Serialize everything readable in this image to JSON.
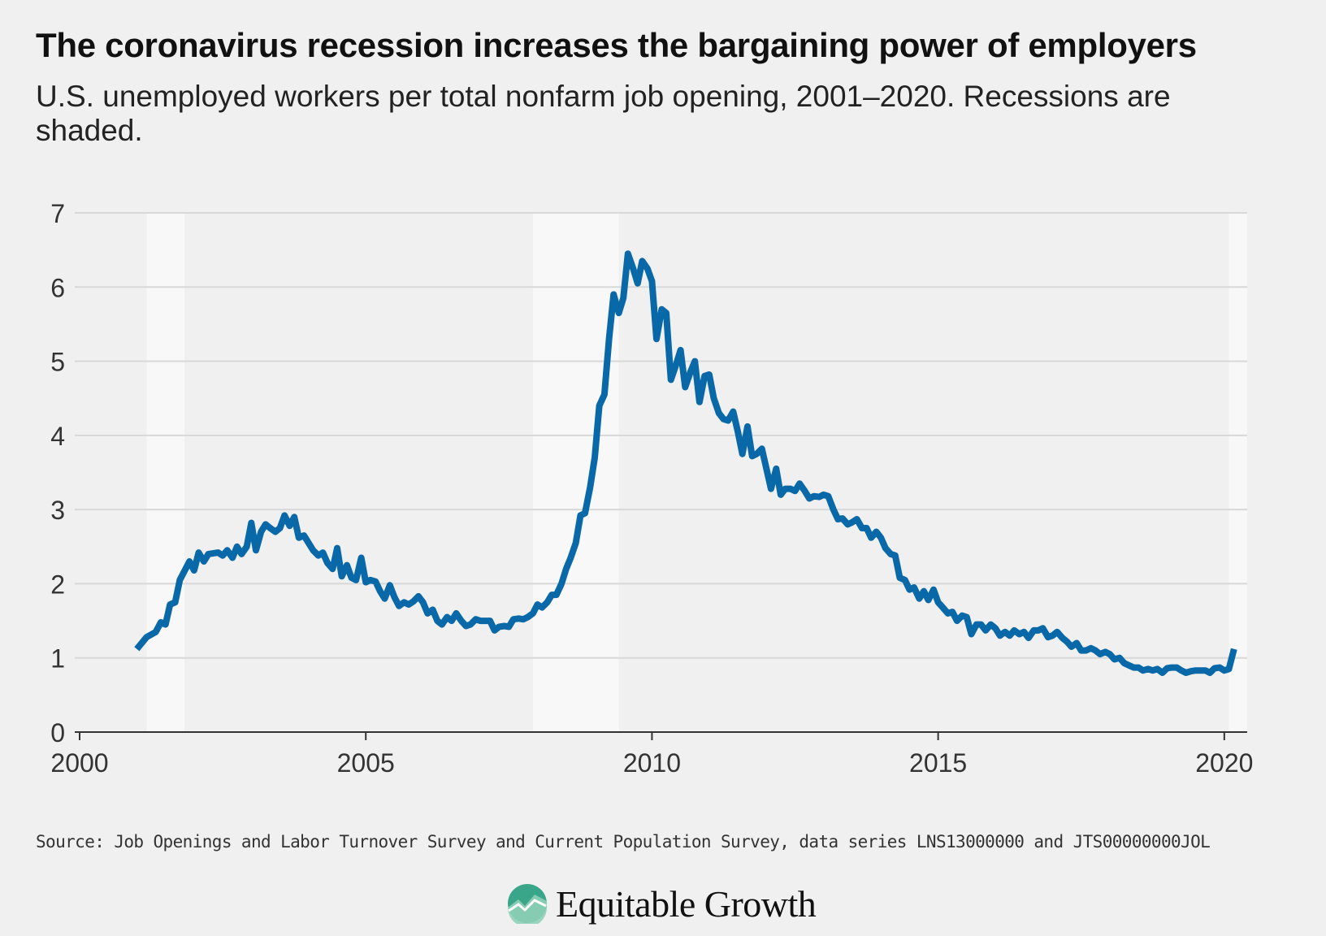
{
  "title": "The coronavirus recession increases the bargaining power of employers",
  "subtitle": "U.S. unemployed workers per total nonfarm job opening, 2001–2020. Recessions are shaded.",
  "source": "Source: Job Openings and Labor Turnover Survey and Current Population Survey, data series LNS13000000 and JTS00000000JOL",
  "logo": {
    "text": "Equitable Growth",
    "icon": "equitable-growth-logo-icon"
  },
  "colors": {
    "line": "#0868a8",
    "grid": "#d8d8d8",
    "recession": "#f8f8f8",
    "background": "#f0f0f0"
  },
  "chart_data": {
    "type": "line",
    "title": "",
    "xlabel": "",
    "ylabel": "",
    "xlim": [
      2000,
      2020.4
    ],
    "ylim": [
      0,
      7
    ],
    "x_ticks": [
      {
        "value": 2000,
        "label": "2000"
      },
      {
        "value": 2005,
        "label": "2005"
      },
      {
        "value": 2010,
        "label": "2010"
      },
      {
        "value": 2015,
        "label": "2015"
      },
      {
        "value": 2020,
        "label": "2020"
      }
    ],
    "y_ticks": [
      {
        "value": 0,
        "label": "0"
      },
      {
        "value": 1,
        "label": "1"
      },
      {
        "value": 2,
        "label": "2"
      },
      {
        "value": 3,
        "label": "3"
      },
      {
        "value": 4,
        "label": "4"
      },
      {
        "value": 5,
        "label": "5"
      },
      {
        "value": 6,
        "label": "6"
      },
      {
        "value": 7,
        "label": "7"
      }
    ],
    "grid": true,
    "recessions": [
      {
        "start": 2001.17,
        "end": 2001.83
      },
      {
        "start": 2007.92,
        "end": 2009.42
      },
      {
        "start": 2020.08,
        "end": 2020.4
      }
    ],
    "series": [
      {
        "color": "#0868a8",
        "points": [
          [
            2001.0,
            1.12
          ],
          [
            2001.17,
            1.28
          ],
          [
            2001.33,
            1.35
          ],
          [
            2001.42,
            1.48
          ],
          [
            2001.5,
            1.45
          ],
          [
            2001.58,
            1.72
          ],
          [
            2001.67,
            1.75
          ],
          [
            2001.75,
            2.05
          ],
          [
            2001.92,
            2.3
          ],
          [
            2002.0,
            2.18
          ],
          [
            2002.08,
            2.42
          ],
          [
            2002.17,
            2.3
          ],
          [
            2002.25,
            2.4
          ],
          [
            2002.42,
            2.42
          ],
          [
            2002.5,
            2.38
          ],
          [
            2002.58,
            2.45
          ],
          [
            2002.67,
            2.35
          ],
          [
            2002.75,
            2.5
          ],
          [
            2002.83,
            2.4
          ],
          [
            2002.92,
            2.5
          ],
          [
            2003.0,
            2.82
          ],
          [
            2003.08,
            2.45
          ],
          [
            2003.17,
            2.7
          ],
          [
            2003.25,
            2.8
          ],
          [
            2003.33,
            2.75
          ],
          [
            2003.42,
            2.7
          ],
          [
            2003.5,
            2.75
          ],
          [
            2003.58,
            2.92
          ],
          [
            2003.67,
            2.78
          ],
          [
            2003.75,
            2.9
          ],
          [
            2003.83,
            2.62
          ],
          [
            2003.92,
            2.65
          ],
          [
            2004.0,
            2.55
          ],
          [
            2004.08,
            2.45
          ],
          [
            2004.17,
            2.38
          ],
          [
            2004.25,
            2.42
          ],
          [
            2004.33,
            2.28
          ],
          [
            2004.42,
            2.2
          ],
          [
            2004.5,
            2.48
          ],
          [
            2004.58,
            2.1
          ],
          [
            2004.67,
            2.25
          ],
          [
            2004.75,
            2.08
          ],
          [
            2004.83,
            2.05
          ],
          [
            2004.92,
            2.35
          ],
          [
            2005.0,
            2.02
          ],
          [
            2005.08,
            2.05
          ],
          [
            2005.17,
            2.03
          ],
          [
            2005.25,
            1.9
          ],
          [
            2005.33,
            1.8
          ],
          [
            2005.42,
            1.98
          ],
          [
            2005.5,
            1.82
          ],
          [
            2005.58,
            1.7
          ],
          [
            2005.67,
            1.75
          ],
          [
            2005.75,
            1.72
          ],
          [
            2005.83,
            1.76
          ],
          [
            2005.92,
            1.83
          ],
          [
            2006.0,
            1.75
          ],
          [
            2006.08,
            1.6
          ],
          [
            2006.17,
            1.65
          ],
          [
            2006.25,
            1.5
          ],
          [
            2006.33,
            1.45
          ],
          [
            2006.42,
            1.55
          ],
          [
            2006.5,
            1.5
          ],
          [
            2006.58,
            1.6
          ],
          [
            2006.67,
            1.5
          ],
          [
            2006.75,
            1.43
          ],
          [
            2006.83,
            1.45
          ],
          [
            2006.92,
            1.52
          ],
          [
            2007.0,
            1.5
          ],
          [
            2007.08,
            1.5
          ],
          [
            2007.17,
            1.5
          ],
          [
            2007.25,
            1.37
          ],
          [
            2007.33,
            1.42
          ],
          [
            2007.42,
            1.43
          ],
          [
            2007.5,
            1.42
          ],
          [
            2007.58,
            1.52
          ],
          [
            2007.67,
            1.53
          ],
          [
            2007.75,
            1.52
          ],
          [
            2007.83,
            1.55
          ],
          [
            2007.92,
            1.6
          ],
          [
            2008.0,
            1.72
          ],
          [
            2008.08,
            1.68
          ],
          [
            2008.17,
            1.75
          ],
          [
            2008.25,
            1.85
          ],
          [
            2008.33,
            1.85
          ],
          [
            2008.42,
            2.0
          ],
          [
            2008.5,
            2.2
          ],
          [
            2008.58,
            2.35
          ],
          [
            2008.67,
            2.55
          ],
          [
            2008.75,
            2.92
          ],
          [
            2008.83,
            2.95
          ],
          [
            2008.92,
            3.3
          ],
          [
            2009.0,
            3.7
          ],
          [
            2009.08,
            4.4
          ],
          [
            2009.17,
            4.55
          ],
          [
            2009.25,
            5.3
          ],
          [
            2009.33,
            5.9
          ],
          [
            2009.42,
            5.65
          ],
          [
            2009.5,
            5.85
          ],
          [
            2009.58,
            6.45
          ],
          [
            2009.67,
            6.25
          ],
          [
            2009.75,
            6.05
          ],
          [
            2009.83,
            6.35
          ],
          [
            2009.92,
            6.25
          ],
          [
            2010.0,
            6.08
          ],
          [
            2010.08,
            5.3
          ],
          [
            2010.17,
            5.7
          ],
          [
            2010.25,
            5.65
          ],
          [
            2010.33,
            4.75
          ],
          [
            2010.42,
            4.95
          ],
          [
            2010.5,
            5.15
          ],
          [
            2010.58,
            4.65
          ],
          [
            2010.67,
            4.85
          ],
          [
            2010.75,
            5.0
          ],
          [
            2010.83,
            4.45
          ],
          [
            2010.92,
            4.8
          ],
          [
            2011.0,
            4.82
          ],
          [
            2011.08,
            4.5
          ],
          [
            2011.17,
            4.3
          ],
          [
            2011.25,
            4.22
          ],
          [
            2011.33,
            4.2
          ],
          [
            2011.42,
            4.32
          ],
          [
            2011.5,
            4.05
          ],
          [
            2011.58,
            3.75
          ],
          [
            2011.67,
            4.12
          ],
          [
            2011.75,
            3.72
          ],
          [
            2011.83,
            3.75
          ],
          [
            2011.92,
            3.82
          ],
          [
            2012.0,
            3.55
          ],
          [
            2012.08,
            3.28
          ],
          [
            2012.17,
            3.55
          ],
          [
            2012.25,
            3.2
          ],
          [
            2012.33,
            3.28
          ],
          [
            2012.42,
            3.28
          ],
          [
            2012.5,
            3.25
          ],
          [
            2012.58,
            3.35
          ],
          [
            2012.67,
            3.25
          ],
          [
            2012.75,
            3.15
          ],
          [
            2012.83,
            3.18
          ],
          [
            2012.92,
            3.17
          ],
          [
            2013.0,
            3.2
          ],
          [
            2013.08,
            3.18
          ],
          [
            2013.17,
            3.0
          ],
          [
            2013.25,
            2.87
          ],
          [
            2013.33,
            2.88
          ],
          [
            2013.42,
            2.8
          ],
          [
            2013.5,
            2.83
          ],
          [
            2013.58,
            2.87
          ],
          [
            2013.67,
            2.75
          ],
          [
            2013.75,
            2.75
          ],
          [
            2013.83,
            2.62
          ],
          [
            2013.92,
            2.7
          ],
          [
            2014.0,
            2.62
          ],
          [
            2014.08,
            2.48
          ],
          [
            2014.17,
            2.4
          ],
          [
            2014.25,
            2.38
          ],
          [
            2014.33,
            2.08
          ],
          [
            2014.42,
            2.05
          ],
          [
            2014.5,
            1.92
          ],
          [
            2014.58,
            1.95
          ],
          [
            2014.67,
            1.8
          ],
          [
            2014.75,
            1.9
          ],
          [
            2014.83,
            1.78
          ],
          [
            2014.92,
            1.92
          ],
          [
            2015.0,
            1.75
          ],
          [
            2015.08,
            1.68
          ],
          [
            2015.17,
            1.6
          ],
          [
            2015.25,
            1.62
          ],
          [
            2015.33,
            1.5
          ],
          [
            2015.42,
            1.57
          ],
          [
            2015.5,
            1.55
          ],
          [
            2015.58,
            1.32
          ],
          [
            2015.67,
            1.45
          ],
          [
            2015.75,
            1.45
          ],
          [
            2015.83,
            1.37
          ],
          [
            2015.92,
            1.45
          ],
          [
            2016.0,
            1.4
          ],
          [
            2016.08,
            1.3
          ],
          [
            2016.17,
            1.35
          ],
          [
            2016.25,
            1.3
          ],
          [
            2016.33,
            1.37
          ],
          [
            2016.42,
            1.32
          ],
          [
            2016.5,
            1.35
          ],
          [
            2016.58,
            1.27
          ],
          [
            2016.67,
            1.37
          ],
          [
            2016.75,
            1.37
          ],
          [
            2016.83,
            1.4
          ],
          [
            2016.92,
            1.28
          ],
          [
            2017.0,
            1.3
          ],
          [
            2017.08,
            1.35
          ],
          [
            2017.17,
            1.27
          ],
          [
            2017.25,
            1.22
          ],
          [
            2017.33,
            1.15
          ],
          [
            2017.42,
            1.2
          ],
          [
            2017.5,
            1.1
          ],
          [
            2017.58,
            1.1
          ],
          [
            2017.67,
            1.13
          ],
          [
            2017.75,
            1.1
          ],
          [
            2017.83,
            1.05
          ],
          [
            2017.92,
            1.08
          ],
          [
            2018.0,
            1.05
          ],
          [
            2018.08,
            0.98
          ],
          [
            2018.17,
            1.0
          ],
          [
            2018.25,
            0.93
          ],
          [
            2018.33,
            0.9
          ],
          [
            2018.42,
            0.87
          ],
          [
            2018.5,
            0.87
          ],
          [
            2018.58,
            0.83
          ],
          [
            2018.67,
            0.85
          ],
          [
            2018.75,
            0.83
          ],
          [
            2018.83,
            0.85
          ],
          [
            2018.92,
            0.8
          ],
          [
            2019.0,
            0.86
          ],
          [
            2019.08,
            0.87
          ],
          [
            2019.17,
            0.87
          ],
          [
            2019.25,
            0.83
          ],
          [
            2019.33,
            0.8
          ],
          [
            2019.42,
            0.82
          ],
          [
            2019.5,
            0.83
          ],
          [
            2019.58,
            0.83
          ],
          [
            2019.67,
            0.83
          ],
          [
            2019.75,
            0.8
          ],
          [
            2019.83,
            0.86
          ],
          [
            2019.92,
            0.87
          ],
          [
            2020.0,
            0.83
          ],
          [
            2020.08,
            0.85
          ],
          [
            2020.17,
            1.12
          ]
        ]
      }
    ]
  }
}
